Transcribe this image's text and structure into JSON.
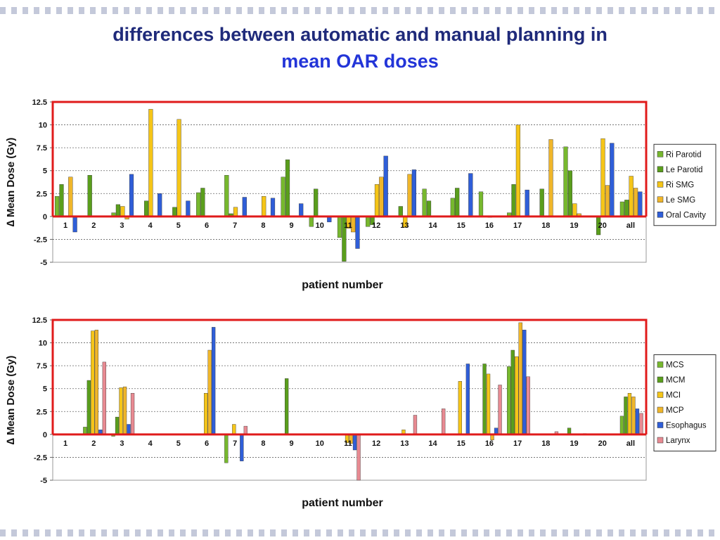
{
  "title": {
    "line1": "differences between automatic and manual planning in",
    "line2": "mean OAR doses"
  },
  "chart_data": [
    {
      "type": "bar",
      "ylabel": "∆ Mean Dose (Gy)",
      "xlabel": "patient number",
      "categories": [
        "1",
        "2",
        "3",
        "4",
        "5",
        "6",
        "7",
        "8",
        "9",
        "10",
        "11",
        "12",
        "13",
        "14",
        "15",
        "16",
        "17",
        "18",
        "19",
        "20",
        "all"
      ],
      "ylim": [
        -5,
        12.5
      ],
      "yticks": [
        "12.5",
        "10",
        "7.5",
        "5",
        "2.5",
        "0",
        "-2.5",
        "-5"
      ],
      "grid": true,
      "legend_position": "right",
      "series": [
        {
          "name": "Ri Parotid",
          "color": "#77b82e",
          "values": [
            2.2,
            0,
            0.4,
            0,
            0,
            2.6,
            4.5,
            0,
            4.3,
            -1.1,
            -2.3,
            -1.1,
            0,
            3.0,
            2.0,
            2.7,
            0.4,
            0,
            7.6,
            0,
            1.6
          ]
        },
        {
          "name": "Le Parotid",
          "color": "#5a9e1c",
          "values": [
            3.5,
            4.5,
            1.3,
            1.7,
            1.0,
            3.1,
            0.3,
            0,
            6.2,
            3.0,
            -4.9,
            -0.9,
            1.1,
            1.7,
            3.1,
            0,
            3.5,
            3.0,
            5.0,
            -2.0,
            1.8
          ]
        },
        {
          "name": "Ri SMG",
          "color": "#f5c518",
          "values": [
            0,
            0,
            1.1,
            11.7,
            10.6,
            0,
            1.0,
            2.2,
            0,
            0,
            -1.3,
            3.5,
            -1.2,
            0,
            0,
            -0.1,
            10.0,
            0,
            1.4,
            8.5,
            4.4
          ]
        },
        {
          "name": "Le SMG",
          "color": "#f0b62a",
          "values": [
            4.3,
            0,
            -0.3,
            0,
            0,
            0,
            0,
            0,
            0,
            0,
            -1.7,
            4.3,
            4.6,
            0,
            0,
            0,
            0,
            8.4,
            0.3,
            3.4,
            3.1
          ]
        },
        {
          "name": "Oral Cavity",
          "color": "#2f5ed8",
          "values": [
            -1.7,
            0,
            4.6,
            2.5,
            1.7,
            0,
            2.1,
            2.0,
            1.4,
            -0.6,
            -3.5,
            6.6,
            5.1,
            0,
            4.7,
            0,
            2.9,
            0,
            0,
            8.0,
            2.7
          ]
        }
      ]
    },
    {
      "type": "bar",
      "ylabel": "∆ Mean Dose (Gy)",
      "xlabel": "patient number",
      "categories": [
        "1",
        "2",
        "3",
        "4",
        "5",
        "6",
        "7",
        "8",
        "9",
        "10",
        "11",
        "12",
        "13",
        "14",
        "15",
        "16",
        "17",
        "18",
        "19",
        "20",
        "all"
      ],
      "ylim": [
        -5,
        12.5
      ],
      "yticks": [
        "12.5",
        "10",
        "7.5",
        "5",
        "2.5",
        "0",
        "-2.5",
        "-5"
      ],
      "grid": true,
      "legend_position": "right",
      "series": [
        {
          "name": "MCS",
          "color": "#77b82e",
          "values": [
            0,
            0.8,
            -0.2,
            0,
            0,
            0,
            -3.1,
            0,
            0,
            0,
            0,
            0,
            0,
            0,
            0,
            0,
            7.4,
            0,
            0,
            0,
            2.0
          ]
        },
        {
          "name": "MCM",
          "color": "#5a9e1c",
          "values": [
            0,
            5.9,
            1.9,
            0,
            0,
            0,
            0,
            0,
            6.1,
            0,
            0,
            0,
            0,
            0,
            0,
            7.7,
            9.2,
            0,
            0.7,
            0,
            4.1
          ]
        },
        {
          "name": "MCI",
          "color": "#f5c518",
          "values": [
            0,
            11.3,
            5.1,
            0,
            0,
            4.5,
            1.1,
            0,
            0,
            0,
            -0.9,
            0,
            0.5,
            0,
            5.8,
            6.6,
            8.5,
            0,
            0,
            0,
            4.5
          ]
        },
        {
          "name": "MCP",
          "color": "#f0b62a",
          "values": [
            0,
            11.4,
            5.2,
            0,
            0,
            9.2,
            0,
            0,
            0,
            0,
            -1.0,
            0,
            0,
            0,
            0,
            -0.6,
            12.2,
            0,
            0,
            0,
            4.1
          ]
        },
        {
          "name": "Esophagus",
          "color": "#2f5ed8",
          "values": [
            0,
            0.5,
            1.1,
            0,
            0,
            11.7,
            -2.9,
            0,
            0,
            0,
            -1.7,
            0,
            0,
            0,
            7.7,
            0.7,
            11.4,
            0,
            0,
            0,
            2.8
          ]
        },
        {
          "name": "Larynx",
          "color": "#e88a92",
          "values": [
            0,
            7.9,
            4.5,
            0,
            0,
            0,
            0.9,
            0,
            0,
            0,
            -5.0,
            0,
            2.1,
            2.8,
            0,
            5.4,
            6.3,
            0.3,
            0.1,
            0,
            2.3
          ]
        }
      ]
    }
  ]
}
